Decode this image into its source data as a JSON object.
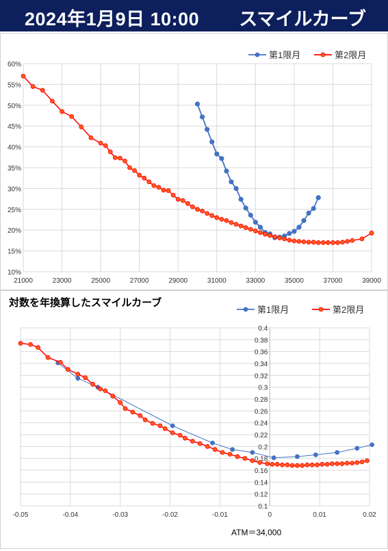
{
  "header": {
    "datetime": "2024年1月9日 10:00",
    "title": "スマイルカーブ"
  },
  "colors": {
    "banner": "#0d1f5c",
    "series1": "#4472c4",
    "series2": "#ff0000",
    "series2_fill": "#ff5a1f"
  },
  "chart_data": [
    {
      "type": "line",
      "title": "",
      "xlabel": "",
      "ylabel": "",
      "xlim": [
        21000,
        39000
      ],
      "ylim": [
        10,
        60
      ],
      "x_ticks": [
        "21000",
        "23000",
        "25000",
        "27000",
        "29000",
        "31000",
        "33000",
        "35000",
        "37000",
        "39000"
      ],
      "y_ticks": [
        "10%",
        "15%",
        "20%",
        "25%",
        "30%",
        "35%",
        "40%",
        "45%",
        "50%",
        "55%",
        "60%"
      ],
      "grid": true,
      "legend": "top-right",
      "series": [
        {
          "name": "第1限月",
          "x": [
            30000,
            30250,
            30500,
            30750,
            31000,
            31250,
            31500,
            31750,
            32000,
            32250,
            32500,
            32750,
            33000,
            33250,
            33500,
            33750,
            34000,
            34250,
            34500,
            34750,
            35000,
            35250,
            35500,
            35750,
            36000,
            36250
          ],
          "y": [
            50.3,
            47.2,
            44.2,
            41.2,
            38.3,
            37.2,
            34.2,
            31.6,
            30.0,
            27.4,
            25.3,
            23.6,
            21.9,
            20.7,
            19.4,
            19.1,
            18.2,
            18.3,
            18.6,
            19.2,
            19.7,
            20.7,
            22.3,
            24.1,
            25.2,
            27.8
          ]
        },
        {
          "name": "第2限月",
          "x": [
            21000,
            21500,
            22000,
            22500,
            23000,
            23500,
            24000,
            24500,
            25000,
            25250,
            25500,
            25750,
            26000,
            26250,
            26500,
            26750,
            27000,
            27250,
            27500,
            27750,
            28000,
            28250,
            28500,
            28750,
            29000,
            29250,
            29500,
            29750,
            30000,
            30250,
            30500,
            30750,
            31000,
            31250,
            31500,
            31750,
            32000,
            32250,
            32500,
            32750,
            33000,
            33250,
            33500,
            33750,
            34000,
            34250,
            34500,
            34750,
            35000,
            35250,
            35500,
            35750,
            36000,
            36250,
            36500,
            36750,
            37000,
            37250,
            37500,
            37750,
            38000,
            38500,
            39000
          ],
          "y": [
            57.0,
            54.5,
            53.6,
            51.0,
            48.5,
            47.3,
            44.8,
            42.2,
            40.9,
            40.3,
            38.8,
            37.4,
            37.3,
            36.6,
            35.0,
            34.3,
            33.2,
            32.5,
            31.6,
            30.7,
            30.3,
            29.6,
            29.5,
            28.4,
            27.4,
            27.1,
            26.4,
            25.6,
            25.0,
            24.6,
            24.0,
            23.5,
            23.0,
            22.6,
            22.3,
            21.8,
            21.4,
            21.0,
            20.6,
            20.2,
            19.8,
            19.4,
            19.0,
            18.7,
            18.4,
            18.1,
            17.9,
            17.6,
            17.4,
            17.3,
            17.2,
            17.1,
            17.1,
            17.0,
            17.0,
            17.0,
            17.0,
            17.0,
            17.1,
            17.3,
            17.5,
            17.9,
            19.3
          ]
        }
      ]
    },
    {
      "type": "line",
      "title": "対数を年換算したスマイルカーブ",
      "xlabel": "",
      "ylabel": "",
      "xlim": [
        -0.05,
        0.02
      ],
      "ylim": [
        0.1,
        0.4
      ],
      "x_ticks": [
        "-0.05",
        "-0.04",
        "-0.03",
        "-0.02",
        "-0.01",
        "0",
        "0.01",
        "0.02"
      ],
      "y_ticks": [
        "0.1",
        "0.12",
        "0.14",
        "0.16",
        "0.18",
        "0.2",
        "0.22",
        "0.24",
        "0.26",
        "0.28",
        "0.3",
        "0.32",
        "0.34",
        "0.36",
        "0.38",
        "0.4"
      ],
      "grid": true,
      "legend": "top-right",
      "note": "ATM＝34,000",
      "series": [
        {
          "name": "第1限月",
          "x": [
            -0.0425,
            -0.0385,
            -0.0345,
            -0.0195,
            -0.0115,
            -0.0075,
            -0.0035,
            0.0008,
            0.0055,
            0.0092,
            0.0135,
            0.0175,
            0.0205
          ],
          "y": [
            0.341,
            0.315,
            0.3,
            0.235,
            0.206,
            0.195,
            0.19,
            0.181,
            0.183,
            0.186,
            0.19,
            0.197,
            0.203
          ]
        },
        {
          "name": "第2限月",
          "x": [
            -0.05,
            -0.048,
            -0.0465,
            -0.0445,
            -0.042,
            -0.0405,
            -0.0385,
            -0.037,
            -0.0355,
            -0.034,
            -0.033,
            -0.0315,
            -0.03,
            -0.029,
            -0.0275,
            -0.026,
            -0.025,
            -0.0235,
            -0.022,
            -0.021,
            -0.0195,
            -0.018,
            -0.017,
            -0.0155,
            -0.014,
            -0.0125,
            -0.011,
            -0.0095,
            -0.008,
            -0.0065,
            -0.005,
            -0.0035,
            -0.002,
            -0.0005,
            0.0005,
            0.0015,
            0.0025,
            0.0035,
            0.0045,
            0.0055,
            0.0065,
            0.0075,
            0.0085,
            0.0095,
            0.0105,
            0.0115,
            0.0125,
            0.0135,
            0.0145,
            0.0155,
            0.0165,
            0.0175,
            0.0185,
            0.0195
          ],
          "y": [
            0.374,
            0.372,
            0.367,
            0.35,
            0.342,
            0.33,
            0.322,
            0.316,
            0.305,
            0.297,
            0.294,
            0.285,
            0.274,
            0.264,
            0.258,
            0.252,
            0.245,
            0.239,
            0.235,
            0.23,
            0.223,
            0.219,
            0.214,
            0.209,
            0.205,
            0.2,
            0.195,
            0.19,
            0.187,
            0.183,
            0.18,
            0.176,
            0.173,
            0.171,
            0.17,
            0.17,
            0.169,
            0.169,
            0.168,
            0.168,
            0.168,
            0.169,
            0.169,
            0.169,
            0.17,
            0.17,
            0.171,
            0.171,
            0.171,
            0.172,
            0.172,
            0.173,
            0.174,
            0.176
          ]
        }
      ]
    }
  ]
}
